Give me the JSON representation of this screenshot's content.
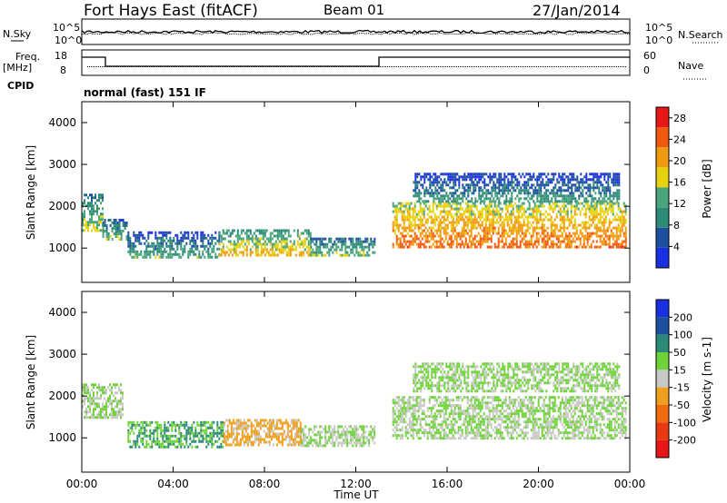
{
  "header": {
    "station": "Fort Hays East (fitACF)",
    "beam": "Beam 01",
    "date": "27/Jan/2014"
  },
  "mode_line": "normal (fast) 151 IF",
  "aux_panels": {
    "nsky_label": "N.Sky",
    "nsearch_label": "N.Search",
    "noise_ticks": [
      "10^5",
      "10^0"
    ],
    "freq_label": "Freq.",
    "freq_unit": "[MHz]",
    "freq_ticks": [
      18,
      8
    ],
    "cpid_label": "CPID",
    "nave_label": "Nave",
    "nave_ticks": [
      60,
      0
    ]
  },
  "colors": {
    "power": [
      "#1a2fe0",
      "#1c4fa0",
      "#2d8a78",
      "#4aa57c",
      "#e6d20e",
      "#f09a10",
      "#f05a10",
      "#e81616"
    ],
    "velocity": [
      "#1a2fe0",
      "#1c4fa0",
      "#2d8a78",
      "#6fd23a",
      "#c8c8c4",
      "#f0a020",
      "#f06a10",
      "#e83a10",
      "#e81616"
    ]
  },
  "chart_data": [
    {
      "type": "heatmap",
      "title": "Power",
      "ylabel": "Slant Range [km]",
      "xlabel": "",
      "x_ticks": [
        "00:00",
        "04:00",
        "08:00",
        "12:00",
        "16:00",
        "20:00",
        "00:00"
      ],
      "xlim_hours": [
        0,
        24
      ],
      "y_ticks": [
        1000,
        2000,
        3000,
        4000
      ],
      "ylim": [
        180,
        4500
      ],
      "colorbar": {
        "label": "Power [dB]",
        "ticks": [
          4,
          8,
          12,
          16,
          20,
          24,
          28
        ],
        "range": [
          0,
          30
        ]
      },
      "echo_regions": [
        {
          "t_start": 0.0,
          "t_end": 0.9,
          "range_low": 1400,
          "range_high": 2300,
          "level": 10
        },
        {
          "t_start": 0.9,
          "t_end": 2.0,
          "range_low": 1200,
          "range_high": 1700,
          "level": 8
        },
        {
          "t_start": 2.0,
          "t_end": 6.0,
          "range_low": 800,
          "range_high": 1400,
          "level": 6
        },
        {
          "t_start": 6.0,
          "t_end": 10.0,
          "range_low": 850,
          "range_high": 1450,
          "level": 13
        },
        {
          "t_start": 10.0,
          "t_end": 12.8,
          "range_low": 800,
          "range_high": 1250,
          "level": 9
        },
        {
          "t_start": 13.6,
          "t_end": 23.8,
          "range_low": 1000,
          "range_high": 2100,
          "level": 18
        },
        {
          "t_start": 14.5,
          "t_end": 23.5,
          "range_low": 2100,
          "range_high": 2800,
          "level": 5
        }
      ]
    },
    {
      "type": "heatmap",
      "title": "Velocity",
      "ylabel": "Slant Range [km]",
      "xlabel": "Time UT",
      "x_ticks": [
        "00:00",
        "04:00",
        "08:00",
        "12:00",
        "16:00",
        "20:00",
        "00:00"
      ],
      "xlim_hours": [
        0,
        24
      ],
      "y_ticks": [
        1000,
        2000,
        3000,
        4000
      ],
      "ylim": [
        180,
        4500
      ],
      "colorbar": {
        "label": "Velocity [m s-1]",
        "ticks": [
          200,
          100,
          50,
          15,
          -15,
          -50,
          -100,
          -200
        ]
      },
      "echo_regions": [
        {
          "t_start": 0.0,
          "t_end": 1.8,
          "range_low": 1500,
          "range_high": 2300,
          "velocity": 0
        },
        {
          "t_start": 2.0,
          "t_end": 6.2,
          "range_low": 800,
          "range_high": 1400,
          "velocity": 30
        },
        {
          "t_start": 6.2,
          "t_end": 9.6,
          "range_low": 850,
          "range_high": 1450,
          "velocity": -40
        },
        {
          "t_start": 9.6,
          "t_end": 12.8,
          "range_low": 800,
          "range_high": 1300,
          "velocity": 0
        },
        {
          "t_start": 13.6,
          "t_end": 23.8,
          "range_low": 1000,
          "range_high": 2000,
          "velocity": 0
        },
        {
          "t_start": 14.5,
          "t_end": 23.5,
          "range_low": 2100,
          "range_high": 2800,
          "velocity": 5
        }
      ]
    }
  ]
}
